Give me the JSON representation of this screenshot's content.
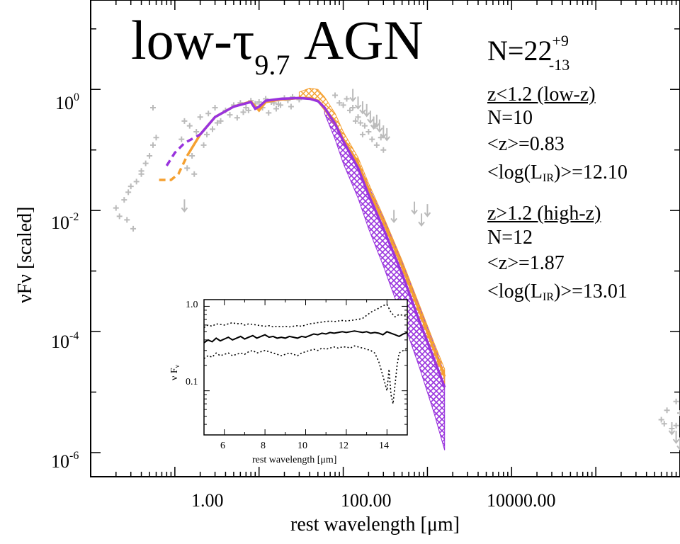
{
  "chart_data": [
    {
      "type": "line",
      "title": "low-τ9.7 AGN",
      "title_main": "low-τ",
      "title_sub": "9.7",
      "title_tail": "AGN",
      "count_label": "N=22",
      "count_plus": "+9",
      "count_minus": "-13",
      "xlabel": "rest wavelength [μm]",
      "ylabel": "νFν [scaled]",
      "xscale": "log",
      "yscale": "log",
      "xlim": [
        0.1,
        1000000
      ],
      "ylim": [
        4e-07,
        30
      ],
      "xticks": [
        {
          "value": 1,
          "label": "1.00"
        },
        {
          "value": 100,
          "label": "100.00"
        },
        {
          "value": 10000,
          "label": "10000.00"
        }
      ],
      "yticks": [
        {
          "value": 1,
          "base": "10",
          "exp": "0"
        },
        {
          "value": 0.01,
          "base": "10",
          "exp": "-2"
        },
        {
          "value": 0.0001,
          "base": "10",
          "exp": "-4"
        },
        {
          "value": 1e-06,
          "base": "10",
          "exp": "-6"
        }
      ],
      "stats": {
        "low_header": "z<1.2 (low-z)",
        "low_n": "N=10",
        "low_z": "<z>=0.83",
        "low_l_pre": "<log(L",
        "low_l_sub": "IR",
        "low_l_post": ")>=12.10",
        "high_header": "z>1.2 (high-z)",
        "high_n": "N=12",
        "high_z": "<z>=1.87",
        "high_l_pre": "<log(L",
        "high_l_sub": "IR",
        "high_l_post": ")>=13.01"
      },
      "colors": {
        "purple": "#9933dd",
        "orange": "#f5a030",
        "gray": "#bbbbbb"
      },
      "series": [
        {
          "name": "low-z",
          "color": "#f5a030",
          "style": "solid",
          "x": [
            1.4,
            2,
            3,
            5,
            8,
            10,
            12,
            18,
            30,
            40,
            50,
            60,
            80,
            100,
            150,
            200,
            300,
            500,
            800,
            1200,
            1600
          ],
          "y": [
            0.08,
            0.18,
            0.35,
            0.52,
            0.63,
            0.45,
            0.62,
            0.68,
            0.72,
            0.72,
            0.65,
            0.5,
            0.28,
            0.15,
            0.06,
            0.022,
            0.0065,
            0.0012,
            0.00022,
            5e-05,
            1.8e-05
          ],
          "extension": {
            "x": [
              0.65,
              0.9,
              1.1,
              1.4
            ],
            "y": [
              0.032,
              0.032,
              0.04,
              0.08
            ]
          }
        },
        {
          "name": "high-z",
          "color": "#9933dd",
          "style": "solid",
          "x": [
            2,
            3,
            5,
            8,
            9,
            10,
            12,
            18,
            30,
            40,
            50,
            60,
            80,
            100,
            150,
            200,
            300,
            500,
            800,
            1200,
            1600
          ],
          "y": [
            0.18,
            0.35,
            0.52,
            0.62,
            0.48,
            0.52,
            0.65,
            0.7,
            0.72,
            0.7,
            0.64,
            0.5,
            0.27,
            0.14,
            0.05,
            0.018,
            0.005,
            0.0009,
            0.00015,
            3.5e-05,
            1.2e-05
          ],
          "extension": {
            "x": [
              0.8,
              1.0,
              1.3,
              2
            ],
            "y": [
              0.055,
              0.09,
              0.13,
              0.18
            ]
          }
        }
      ],
      "bands": [
        {
          "name": "purple-band",
          "color": "#9933dd",
          "x": [
            60,
            80,
            100,
            150,
            200,
            300,
            500,
            800,
            1200,
            1600
          ],
          "upper": [
            0.5,
            0.3,
            0.16,
            0.065,
            0.025,
            0.0075,
            0.0014,
            0.00026,
            6e-05,
            2e-05
          ],
          "lower": [
            0.4,
            0.15,
            0.06,
            0.016,
            0.005,
            0.0012,
            0.00017,
            2.6e-05,
            4.5e-06,
            1.1e-06
          ]
        },
        {
          "name": "orange-band",
          "color": "#f5a030",
          "x": [
            30,
            40,
            50,
            60,
            80,
            100,
            150,
            200,
            300,
            500,
            800,
            1200,
            1600
          ],
          "upper": [
            0.9,
            1.05,
            1.0,
            0.75,
            0.4,
            0.2,
            0.075,
            0.028,
            0.008,
            0.0015,
            0.00028,
            6.5e-05,
            2.4e-05
          ],
          "lower": [
            0.7,
            0.7,
            0.62,
            0.45,
            0.25,
            0.13,
            0.05,
            0.018,
            0.005,
            0.0009,
            0.00016,
            3.5e-05,
            1.2e-05
          ]
        }
      ],
      "points": {
        "name": "photometry",
        "x": [
          0.2,
          0.22,
          0.25,
          0.28,
          0.3,
          0.35,
          0.4,
          0.45,
          0.5,
          0.55,
          0.6,
          0.32,
          0.27,
          0.4,
          0.55,
          1.2,
          1.3,
          1.5,
          1.8,
          2,
          2.5,
          3,
          4,
          5,
          6,
          7,
          8,
          10,
          12,
          15,
          18,
          20,
          25,
          30,
          1.4,
          1.7,
          2.2,
          3.5,
          4.5,
          6.5,
          9,
          14,
          22,
          16,
          24,
          2.8,
          3.2,
          5.5,
          7.5,
          11,
          17,
          1.6,
          2.4,
          13,
          80,
          90,
          110,
          130,
          150,
          160,
          180,
          120,
          140,
          100,
          200,
          220,
          250,
          240,
          170,
          280,
          300,
          600000,
          650000,
          700000,
          800000,
          900000,
          1000000,
          1200000,
          1500000,
          2000000,
          2500000,
          1300000,
          900000
        ],
        "y": [
          0.011,
          0.008,
          0.015,
          0.02,
          0.025,
          0.03,
          0.045,
          0.06,
          0.08,
          0.12,
          0.16,
          0.005,
          0.007,
          0.04,
          0.5,
          0.15,
          0.3,
          0.25,
          0.2,
          0.35,
          0.4,
          0.5,
          0.45,
          0.55,
          0.6,
          0.5,
          0.65,
          0.62,
          0.7,
          0.6,
          0.55,
          0.72,
          0.75,
          0.68,
          0.05,
          0.04,
          0.12,
          0.3,
          0.38,
          0.42,
          0.58,
          0.62,
          0.66,
          0.48,
          0.52,
          0.22,
          0.28,
          0.34,
          0.45,
          0.5,
          0.57,
          0.08,
          0.18,
          0.41,
          0.8,
          0.6,
          0.7,
          0.5,
          0.35,
          0.28,
          0.25,
          0.45,
          0.3,
          0.55,
          0.2,
          0.15,
          0.12,
          0.25,
          0.18,
          0.16,
          0.1,
          3.5e-06,
          3e-06,
          5e-06,
          2.5e-06,
          7e-06,
          4.5e-06,
          8e-06,
          9e-06,
          1.4e-05,
          9e-06,
          6e-06,
          2.8e-06
        ]
      },
      "upper_limits": {
        "x": [
          1.3,
          130,
          150,
          170,
          190,
          210,
          230,
          250,
          270,
          300,
          330,
          400,
          700,
          850,
          1000,
          800000,
          900000,
          1000000
        ],
        "y": [
          0.012,
          0.8,
          0.6,
          0.5,
          0.45,
          0.35,
          0.28,
          0.3,
          0.25,
          0.2,
          0.18,
          0.008,
          0.011,
          0.007,
          0.01,
          2.5e-06,
          1.8e-06,
          1.4e-06
        ]
      }
    },
    {
      "type": "line",
      "xlabel": "rest wavelength [μm]",
      "ylabel": "ν Fν",
      "ylabel_main": "ν F",
      "ylabel_sub": "ν",
      "xlim": [
        5,
        15
      ],
      "ylim": [
        0.03,
        1.2
      ],
      "yscale": "log",
      "xticks": [
        6,
        8,
        10,
        12,
        14
      ],
      "yticks": [
        {
          "value": 0.1,
          "label": "0.1"
        },
        {
          "value": 1.0,
          "label": "1.0"
        }
      ],
      "series": [
        {
          "name": "mean",
          "style": "solid",
          "x": [
            5.0,
            5.2,
            5.4,
            5.6,
            5.8,
            6.0,
            6.2,
            6.4,
            6.6,
            6.8,
            7.0,
            7.2,
            7.4,
            7.6,
            7.8,
            8.0,
            8.2,
            8.4,
            8.6,
            8.8,
            9.0,
            9.2,
            9.4,
            9.6,
            9.8,
            10.0,
            10.2,
            10.4,
            10.6,
            10.8,
            11.0,
            11.2,
            11.4,
            11.6,
            11.8,
            12.0,
            12.2,
            12.4,
            12.6,
            12.8,
            13.0,
            13.2,
            13.4,
            13.6,
            13.8,
            14.0,
            14.2,
            14.4,
            14.6,
            14.8,
            15.0
          ],
          "y": [
            0.37,
            0.4,
            0.38,
            0.42,
            0.39,
            0.41,
            0.43,
            0.4,
            0.42,
            0.44,
            0.41,
            0.43,
            0.45,
            0.42,
            0.44,
            0.46,
            0.43,
            0.44,
            0.42,
            0.43,
            0.42,
            0.44,
            0.43,
            0.42,
            0.44,
            0.43,
            0.45,
            0.47,
            0.46,
            0.48,
            0.47,
            0.49,
            0.48,
            0.49,
            0.5,
            0.49,
            0.5,
            0.51,
            0.5,
            0.49,
            0.5,
            0.48,
            0.49,
            0.48,
            0.46,
            0.5,
            0.48,
            0.46,
            0.44,
            0.47,
            0.49
          ]
        },
        {
          "name": "upper",
          "style": "dotted",
          "x": [
            5.0,
            5.2,
            5.4,
            5.6,
            5.8,
            6.0,
            6.2,
            6.4,
            6.6,
            6.8,
            7.0,
            7.2,
            7.4,
            7.6,
            7.8,
            8.0,
            8.2,
            8.4,
            8.6,
            8.8,
            9.0,
            9.2,
            9.4,
            9.6,
            9.8,
            10.0,
            10.2,
            10.4,
            10.6,
            10.8,
            11.0,
            11.2,
            11.4,
            11.6,
            11.8,
            12.0,
            12.2,
            12.4,
            12.6,
            12.8,
            13.0,
            13.2,
            13.4,
            13.6,
            13.8,
            14.0,
            14.2,
            14.4,
            14.6,
            14.8,
            15.0
          ],
          "y": [
            0.56,
            0.6,
            0.58,
            0.62,
            0.61,
            0.6,
            0.62,
            0.64,
            0.62,
            0.63,
            0.6,
            0.62,
            0.61,
            0.6,
            0.59,
            0.58,
            0.59,
            0.57,
            0.58,
            0.57,
            0.58,
            0.57,
            0.58,
            0.59,
            0.58,
            0.6,
            0.62,
            0.63,
            0.64,
            0.65,
            0.66,
            0.67,
            0.66,
            0.67,
            0.68,
            0.67,
            0.68,
            0.69,
            0.7,
            0.72,
            0.78,
            0.85,
            0.9,
            0.95,
            1.02,
            1.05,
            0.85,
            0.75,
            0.8,
            0.78,
            0.76
          ]
        },
        {
          "name": "lower",
          "style": "dotted",
          "x": [
            5.0,
            5.2,
            5.4,
            5.6,
            5.8,
            6.0,
            6.2,
            6.4,
            6.6,
            6.8,
            7.0,
            7.2,
            7.4,
            7.6,
            7.8,
            8.0,
            8.2,
            8.4,
            8.6,
            8.8,
            9.0,
            9.2,
            9.4,
            9.6,
            9.8,
            10.0,
            10.2,
            10.4,
            10.6,
            10.8,
            11.0,
            11.2,
            11.4,
            11.6,
            11.8,
            12.0,
            12.2,
            12.4,
            12.6,
            12.8,
            13.0,
            13.2,
            13.4,
            13.6,
            13.8,
            14.0,
            14.1,
            14.2,
            14.3,
            14.4,
            14.5,
            14.6,
            14.8,
            15.0
          ],
          "y": [
            0.24,
            0.26,
            0.25,
            0.28,
            0.26,
            0.27,
            0.28,
            0.26,
            0.27,
            0.28,
            0.27,
            0.29,
            0.3,
            0.28,
            0.29,
            0.3,
            0.29,
            0.28,
            0.27,
            0.26,
            0.27,
            0.28,
            0.27,
            0.26,
            0.28,
            0.29,
            0.3,
            0.31,
            0.3,
            0.32,
            0.31,
            0.32,
            0.33,
            0.32,
            0.33,
            0.33,
            0.32,
            0.34,
            0.33,
            0.32,
            0.31,
            0.3,
            0.28,
            0.22,
            0.15,
            0.1,
            0.18,
            0.09,
            0.07,
            0.12,
            0.2,
            0.28,
            0.3,
            0.32
          ]
        }
      ]
    }
  ]
}
